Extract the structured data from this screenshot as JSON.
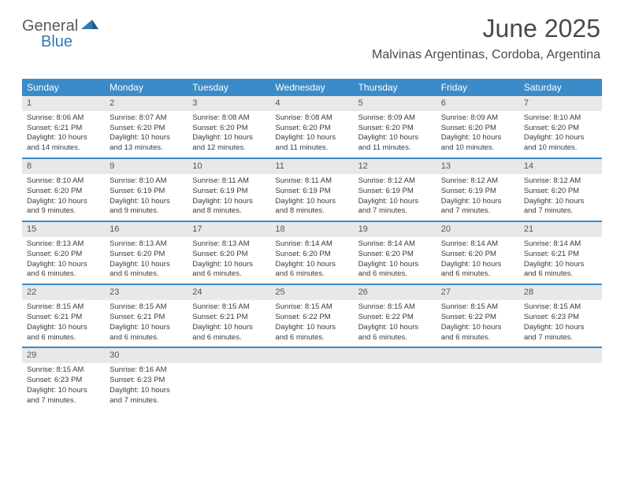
{
  "logo": {
    "text1": "General",
    "text2": "Blue"
  },
  "header": {
    "monthTitle": "June 2025",
    "location": "Malvinas Argentinas, Cordoba, Argentina"
  },
  "colors": {
    "headerBar": "#3b8bc9",
    "dayNumBg": "#e8e8e8",
    "logoAccent": "#2e78b8",
    "text": "#4a4a4a"
  },
  "weekdays": [
    "Sunday",
    "Monday",
    "Tuesday",
    "Wednesday",
    "Thursday",
    "Friday",
    "Saturday"
  ],
  "weeks": [
    [
      {
        "num": "1",
        "sunrise": "Sunrise: 8:06 AM",
        "sunset": "Sunset: 6:21 PM",
        "daylight": "Daylight: 10 hours and 14 minutes."
      },
      {
        "num": "2",
        "sunrise": "Sunrise: 8:07 AM",
        "sunset": "Sunset: 6:20 PM",
        "daylight": "Daylight: 10 hours and 13 minutes."
      },
      {
        "num": "3",
        "sunrise": "Sunrise: 8:08 AM",
        "sunset": "Sunset: 6:20 PM",
        "daylight": "Daylight: 10 hours and 12 minutes."
      },
      {
        "num": "4",
        "sunrise": "Sunrise: 8:08 AM",
        "sunset": "Sunset: 6:20 PM",
        "daylight": "Daylight: 10 hours and 11 minutes."
      },
      {
        "num": "5",
        "sunrise": "Sunrise: 8:09 AM",
        "sunset": "Sunset: 6:20 PM",
        "daylight": "Daylight: 10 hours and 11 minutes."
      },
      {
        "num": "6",
        "sunrise": "Sunrise: 8:09 AM",
        "sunset": "Sunset: 6:20 PM",
        "daylight": "Daylight: 10 hours and 10 minutes."
      },
      {
        "num": "7",
        "sunrise": "Sunrise: 8:10 AM",
        "sunset": "Sunset: 6:20 PM",
        "daylight": "Daylight: 10 hours and 10 minutes."
      }
    ],
    [
      {
        "num": "8",
        "sunrise": "Sunrise: 8:10 AM",
        "sunset": "Sunset: 6:20 PM",
        "daylight": "Daylight: 10 hours and 9 minutes."
      },
      {
        "num": "9",
        "sunrise": "Sunrise: 8:10 AM",
        "sunset": "Sunset: 6:19 PM",
        "daylight": "Daylight: 10 hours and 9 minutes."
      },
      {
        "num": "10",
        "sunrise": "Sunrise: 8:11 AM",
        "sunset": "Sunset: 6:19 PM",
        "daylight": "Daylight: 10 hours and 8 minutes."
      },
      {
        "num": "11",
        "sunrise": "Sunrise: 8:11 AM",
        "sunset": "Sunset: 6:19 PM",
        "daylight": "Daylight: 10 hours and 8 minutes."
      },
      {
        "num": "12",
        "sunrise": "Sunrise: 8:12 AM",
        "sunset": "Sunset: 6:19 PM",
        "daylight": "Daylight: 10 hours and 7 minutes."
      },
      {
        "num": "13",
        "sunrise": "Sunrise: 8:12 AM",
        "sunset": "Sunset: 6:19 PM",
        "daylight": "Daylight: 10 hours and 7 minutes."
      },
      {
        "num": "14",
        "sunrise": "Sunrise: 8:12 AM",
        "sunset": "Sunset: 6:20 PM",
        "daylight": "Daylight: 10 hours and 7 minutes."
      }
    ],
    [
      {
        "num": "15",
        "sunrise": "Sunrise: 8:13 AM",
        "sunset": "Sunset: 6:20 PM",
        "daylight": "Daylight: 10 hours and 6 minutes."
      },
      {
        "num": "16",
        "sunrise": "Sunrise: 8:13 AM",
        "sunset": "Sunset: 6:20 PM",
        "daylight": "Daylight: 10 hours and 6 minutes."
      },
      {
        "num": "17",
        "sunrise": "Sunrise: 8:13 AM",
        "sunset": "Sunset: 6:20 PM",
        "daylight": "Daylight: 10 hours and 6 minutes."
      },
      {
        "num": "18",
        "sunrise": "Sunrise: 8:14 AM",
        "sunset": "Sunset: 6:20 PM",
        "daylight": "Daylight: 10 hours and 6 minutes."
      },
      {
        "num": "19",
        "sunrise": "Sunrise: 8:14 AM",
        "sunset": "Sunset: 6:20 PM",
        "daylight": "Daylight: 10 hours and 6 minutes."
      },
      {
        "num": "20",
        "sunrise": "Sunrise: 8:14 AM",
        "sunset": "Sunset: 6:20 PM",
        "daylight": "Daylight: 10 hours and 6 minutes."
      },
      {
        "num": "21",
        "sunrise": "Sunrise: 8:14 AM",
        "sunset": "Sunset: 6:21 PM",
        "daylight": "Daylight: 10 hours and 6 minutes."
      }
    ],
    [
      {
        "num": "22",
        "sunrise": "Sunrise: 8:15 AM",
        "sunset": "Sunset: 6:21 PM",
        "daylight": "Daylight: 10 hours and 6 minutes."
      },
      {
        "num": "23",
        "sunrise": "Sunrise: 8:15 AM",
        "sunset": "Sunset: 6:21 PM",
        "daylight": "Daylight: 10 hours and 6 minutes."
      },
      {
        "num": "24",
        "sunrise": "Sunrise: 8:15 AM",
        "sunset": "Sunset: 6:21 PM",
        "daylight": "Daylight: 10 hours and 6 minutes."
      },
      {
        "num": "25",
        "sunrise": "Sunrise: 8:15 AM",
        "sunset": "Sunset: 6:22 PM",
        "daylight": "Daylight: 10 hours and 6 minutes."
      },
      {
        "num": "26",
        "sunrise": "Sunrise: 8:15 AM",
        "sunset": "Sunset: 6:22 PM",
        "daylight": "Daylight: 10 hours and 6 minutes."
      },
      {
        "num": "27",
        "sunrise": "Sunrise: 8:15 AM",
        "sunset": "Sunset: 6:22 PM",
        "daylight": "Daylight: 10 hours and 6 minutes."
      },
      {
        "num": "28",
        "sunrise": "Sunrise: 8:15 AM",
        "sunset": "Sunset: 6:23 PM",
        "daylight": "Daylight: 10 hours and 7 minutes."
      }
    ],
    [
      {
        "num": "29",
        "sunrise": "Sunrise: 8:15 AM",
        "sunset": "Sunset: 6:23 PM",
        "daylight": "Daylight: 10 hours and 7 minutes."
      },
      {
        "num": "30",
        "sunrise": "Sunrise: 8:16 AM",
        "sunset": "Sunset: 6:23 PM",
        "daylight": "Daylight: 10 hours and 7 minutes."
      },
      {
        "empty": true
      },
      {
        "empty": true
      },
      {
        "empty": true
      },
      {
        "empty": true
      },
      {
        "empty": true
      }
    ]
  ]
}
